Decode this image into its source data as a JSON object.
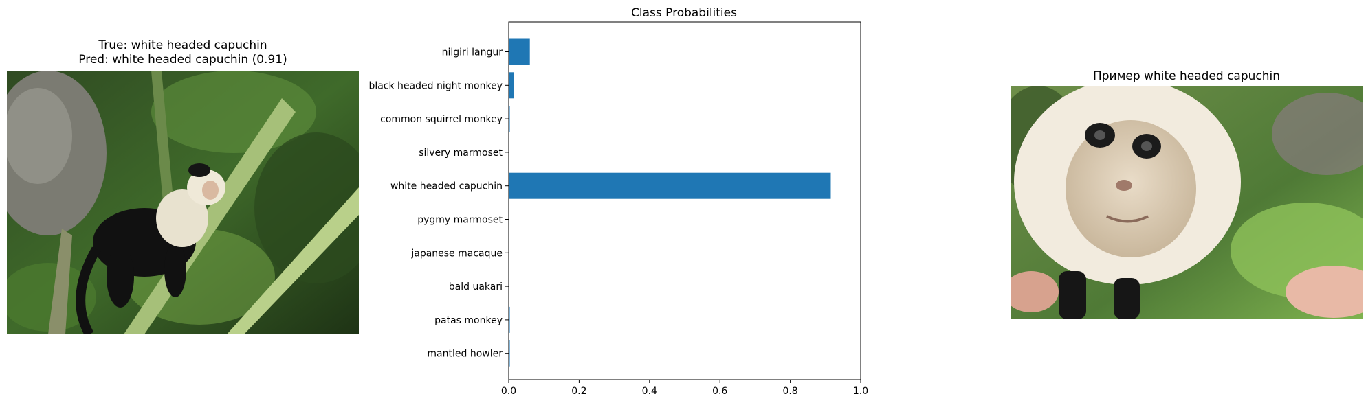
{
  "left_panel": {
    "title_line1": "True: white headed capuchin",
    "title_line2": "Pred: white headed capuchin (0.91)"
  },
  "right_panel": {
    "title": "Пример white headed capuchin"
  },
  "chart_data": {
    "type": "bar",
    "orientation": "horizontal",
    "title": "Class Probabilities",
    "xlabel": "",
    "ylabel": "",
    "categories": [
      "nilgiri langur",
      "black headed night monkey",
      "common squirrel monkey",
      "silvery marmoset",
      "white headed capuchin",
      "pygmy marmoset",
      "japanese macaque",
      "bald uakari",
      "patas monkey",
      "mantled howler"
    ],
    "values": [
      0.06,
      0.015,
      0.003,
      0.001,
      0.915,
      0.001,
      0.001,
      0.001,
      0.003,
      0.003
    ],
    "xlim": [
      0,
      1.0
    ],
    "xticks": [
      "0.0",
      "0.2",
      "0.4",
      "0.6",
      "0.8",
      "1.0"
    ],
    "bar_color": "#1f77b4",
    "grid": false
  }
}
